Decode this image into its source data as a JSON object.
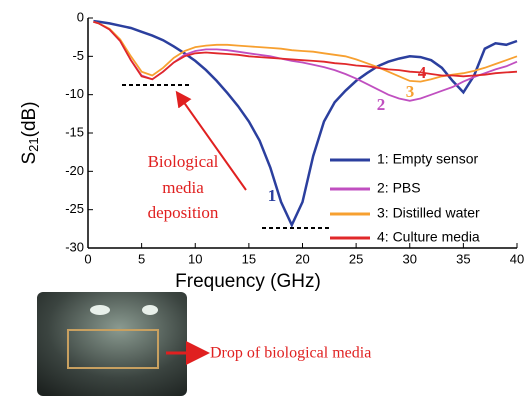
{
  "chart_data": {
    "type": "line",
    "x_label": "Frequency (GHz)",
    "y_label": {
      "base": "S",
      "subscript": "21",
      "unit": "(dB)"
    },
    "x": [
      0.5,
      1,
      2,
      3,
      4,
      5,
      6,
      7,
      8,
      9,
      10,
      11,
      12,
      13,
      14,
      15,
      16,
      17,
      18,
      19,
      20,
      21,
      22,
      23,
      24,
      25,
      26,
      27,
      28,
      29,
      30,
      31,
      32,
      33,
      34,
      35,
      36,
      37,
      38,
      39,
      40
    ],
    "xlim": [
      0,
      40
    ],
    "xticks": [
      0,
      5,
      10,
      15,
      20,
      25,
      30,
      35,
      40
    ],
    "ylim": [
      -30,
      0
    ],
    "yticks": [
      0,
      -5,
      -10,
      -15,
      -20,
      -25,
      -30
    ],
    "series": [
      {
        "name": "1: Empty sensor",
        "color": "#2b3f9e",
        "values": [
          -0.4,
          -0.5,
          -0.7,
          -1,
          -1.3,
          -1.8,
          -2.3,
          -2.9,
          -3.7,
          -4.6,
          -5.6,
          -6.8,
          -8.2,
          -9.8,
          -11.5,
          -13.5,
          -16,
          -19.5,
          -24,
          -27,
          -24,
          -18,
          -13.5,
          -11,
          -9.5,
          -8.2,
          -7.2,
          -6.3,
          -5.7,
          -5.3,
          -5,
          -5.1,
          -5.5,
          -6.5,
          -8.2,
          -9.7,
          -7.5,
          -4,
          -3.3,
          -3.5,
          -3
        ]
      },
      {
        "name": "2: PBS",
        "color": "#c04fc0",
        "values": [
          -0.5,
          -0.7,
          -1.5,
          -3,
          -5.5,
          -7.5,
          -8,
          -7,
          -5.8,
          -4.8,
          -4.3,
          -4.1,
          -4.1,
          -4.2,
          -4.4,
          -4.6,
          -4.8,
          -5,
          -5.3,
          -5.6,
          -5.8,
          -6.1,
          -6.4,
          -6.8,
          -7.3,
          -7.9,
          -8.6,
          -9.3,
          -10,
          -10.5,
          -10.8,
          -10.5,
          -10,
          -9.5,
          -9,
          -8.3,
          -7.7,
          -7.2,
          -6.7,
          -6.3,
          -5.7
        ]
      },
      {
        "name": "3: Distilled water",
        "color": "#f7a030",
        "values": [
          -0.5,
          -0.7,
          -1.4,
          -2.8,
          -5,
          -7,
          -7.5,
          -6.5,
          -5.2,
          -4.3,
          -3.8,
          -3.6,
          -3.5,
          -3.5,
          -3.6,
          -3.7,
          -3.8,
          -3.9,
          -4,
          -4.2,
          -4.3,
          -4.4,
          -4.6,
          -4.8,
          -5,
          -5.4,
          -5.9,
          -6.4,
          -7,
          -7.6,
          -8.2,
          -8.3,
          -8,
          -7.6,
          -7.4,
          -7.2,
          -6.9,
          -6.5,
          -6,
          -5.5,
          -5
        ]
      },
      {
        "name": "4: Culture media",
        "color": "#e0282a",
        "values": [
          -0.5,
          -0.7,
          -1.5,
          -3,
          -5.5,
          -7.6,
          -8,
          -7,
          -5.8,
          -5,
          -4.6,
          -4.5,
          -4.6,
          -4.7,
          -4.8,
          -5,
          -5.1,
          -5.2,
          -5.3,
          -5.4,
          -5.5,
          -5.6,
          -5.7,
          -5.9,
          -6,
          -6.2,
          -6.3,
          -6.5,
          -6.7,
          -6.8,
          -7,
          -7.1,
          -7.3,
          -7.5,
          -7.5,
          -7.6,
          -7.5,
          -7.4,
          -7.2,
          -7.1,
          -7
        ]
      }
    ],
    "curve_labels": [
      "1",
      "2",
      "3",
      "4"
    ],
    "annotation": [
      "Biological",
      "media",
      "deposition"
    ],
    "photo_caption": "Drop of biological media"
  }
}
